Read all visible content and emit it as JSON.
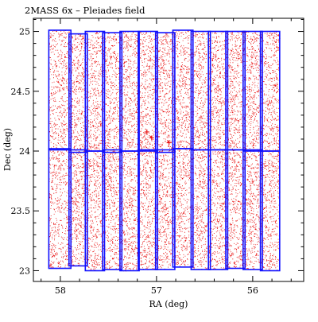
{
  "chart_data": {
    "type": "scatter",
    "title": "2MASS 6x  –  Pleiades field",
    "xlabel": "RA (deg)",
    "ylabel": "Dec (deg)",
    "xlim": [
      58.28,
      55.47
    ],
    "ylim": [
      22.91,
      25.11
    ],
    "x_ticks": [
      58,
      57,
      56
    ],
    "x_minor_step": 0.2,
    "y_ticks": [
      23,
      23.5,
      24,
      24.5,
      25
    ],
    "y_tick_labels": [
      "23",
      "23.5",
      "24",
      "24.5",
      "25"
    ],
    "y_minor_step": 0.1,
    "x_tick_labels": [
      "58",
      "57",
      "56"
    ],
    "point_color": "#e81010",
    "scan_color": "#1010ff",
    "scans": [
      {
        "ra_min": 57.89,
        "ra_max": 58.12,
        "dec_min": 24.01,
        "dec_max": 25.01
      },
      {
        "ra_min": 57.72,
        "ra_max": 57.91,
        "dec_min": 23.99,
        "dec_max": 24.98
      },
      {
        "ra_min": 57.54,
        "ra_max": 57.74,
        "dec_min": 24.0,
        "dec_max": 25.0
      },
      {
        "ra_min": 57.36,
        "ra_max": 57.56,
        "dec_min": 23.99,
        "dec_max": 24.99
      },
      {
        "ra_min": 57.18,
        "ra_max": 57.38,
        "dec_min": 24.0,
        "dec_max": 25.0
      },
      {
        "ra_min": 56.99,
        "ra_max": 57.19,
        "dec_min": 24.0,
        "dec_max": 25.0
      },
      {
        "ra_min": 56.81,
        "ra_max": 57.01,
        "dec_min": 23.99,
        "dec_max": 24.99
      },
      {
        "ra_min": 56.62,
        "ra_max": 56.83,
        "dec_min": 24.02,
        "dec_max": 25.01
      },
      {
        "ra_min": 56.44,
        "ra_max": 56.64,
        "dec_min": 24.01,
        "dec_max": 25.0
      },
      {
        "ra_min": 56.26,
        "ra_max": 56.46,
        "dec_min": 24.01,
        "dec_max": 25.0
      },
      {
        "ra_min": 56.08,
        "ra_max": 56.28,
        "dec_min": 24.01,
        "dec_max": 25.0
      },
      {
        "ra_min": 55.9,
        "ra_max": 56.1,
        "dec_min": 24.0,
        "dec_max": 25.0
      },
      {
        "ra_min": 55.72,
        "ra_max": 55.92,
        "dec_min": 24.0,
        "dec_max": 25.0
      },
      {
        "ra_min": 57.89,
        "ra_max": 58.12,
        "dec_min": 23.02,
        "dec_max": 24.02
      },
      {
        "ra_min": 57.72,
        "ra_max": 57.91,
        "dec_min": 23.04,
        "dec_max": 24.01
      },
      {
        "ra_min": 57.54,
        "ra_max": 57.74,
        "dec_min": 23.0,
        "dec_max": 24.0
      },
      {
        "ra_min": 57.36,
        "ra_max": 57.56,
        "dec_min": 23.01,
        "dec_max": 24.01
      },
      {
        "ra_min": 57.18,
        "ra_max": 57.38,
        "dec_min": 23.0,
        "dec_max": 24.0
      },
      {
        "ra_min": 56.99,
        "ra_max": 57.19,
        "dec_min": 23.01,
        "dec_max": 24.01
      },
      {
        "ra_min": 56.81,
        "ra_max": 57.01,
        "dec_min": 23.01,
        "dec_max": 24.01
      },
      {
        "ra_min": 56.62,
        "ra_max": 56.83,
        "dec_min": 23.03,
        "dec_max": 24.02
      },
      {
        "ra_min": 56.44,
        "ra_max": 56.64,
        "dec_min": 23.01,
        "dec_max": 24.01
      },
      {
        "ra_min": 56.26,
        "ra_max": 56.46,
        "dec_min": 23.01,
        "dec_max": 24.01
      },
      {
        "ra_min": 56.08,
        "ra_max": 56.28,
        "dec_min": 23.02,
        "dec_max": 24.01
      },
      {
        "ra_min": 55.9,
        "ra_max": 56.1,
        "dec_min": 23.01,
        "dec_max": 24.01
      },
      {
        "ra_min": 55.72,
        "ra_max": 55.92,
        "dec_min": 23.0,
        "dec_max": 24.0
      }
    ],
    "points": [
      [
        58.04,
        24.71
      ],
      [
        57.96,
        24.22
      ],
      [
        57.93,
        23.4
      ],
      [
        58.08,
        23.12
      ],
      [
        57.99,
        24.55
      ],
      [
        57.81,
        23.71
      ],
      [
        57.66,
        24.86
      ],
      [
        57.62,
        23.28
      ],
      [
        57.48,
        24.4
      ],
      [
        57.44,
        23.56
      ],
      [
        57.29,
        24.62
      ],
      [
        57.25,
        23.18
      ],
      [
        57.12,
        24.81
      ],
      [
        57.06,
        23.84
      ],
      [
        56.93,
        24.33
      ],
      [
        56.9,
        23.47
      ],
      [
        56.74,
        24.71
      ],
      [
        56.7,
        23.25
      ],
      [
        56.56,
        24.48
      ],
      [
        56.52,
        23.69
      ],
      [
        56.39,
        24.92
      ],
      [
        56.33,
        23.37
      ],
      [
        56.18,
        24.27
      ],
      [
        56.15,
        23.58
      ],
      [
        56.02,
        24.66
      ],
      [
        55.96,
        23.14
      ],
      [
        55.84,
        24.39
      ],
      [
        55.78,
        23.83
      ],
      [
        57.83,
        24.58
      ],
      [
        57.7,
        23.92
      ],
      [
        57.11,
        24.1
      ],
      [
        57.06,
        24.12
      ],
      [
        56.88,
        24.08
      ],
      [
        56.95,
        23.9
      ],
      [
        57.02,
        23.86
      ],
      [
        57.15,
        24.22
      ],
      [
        56.8,
        24.18
      ],
      [
        57.2,
        23.97
      ],
      [
        57.09,
        24.31
      ],
      [
        56.98,
        24.27
      ],
      [
        58.1,
        24.95
      ],
      [
        57.95,
        24.79
      ],
      [
        57.78,
        24.31
      ],
      [
        57.6,
        24.05
      ],
      [
        57.42,
        24.93
      ],
      [
        57.33,
        24.15
      ],
      [
        57.23,
        23.42
      ],
      [
        57.16,
        23.05
      ],
      [
        56.97,
        23.63
      ],
      [
        56.86,
        24.54
      ],
      [
        56.77,
        23.9
      ],
      [
        56.6,
        23.12
      ],
      [
        56.48,
        24.16
      ],
      [
        56.36,
        23.81
      ],
      [
        56.22,
        24.84
      ],
      [
        56.11,
        23.29
      ],
      [
        55.99,
        24.05
      ],
      [
        55.88,
        23.52
      ],
      [
        55.76,
        24.91
      ],
      [
        57.89,
        23.27
      ],
      [
        58.06,
        23.88
      ],
      [
        57.74,
        23.51
      ],
      [
        57.52,
        23.76
      ],
      [
        57.39,
        24.69
      ],
      [
        57.27,
        24.44
      ],
      [
        57.03,
        24.6
      ],
      [
        56.83,
        23.16
      ],
      [
        56.69,
        24.28
      ],
      [
        56.58,
        23.44
      ],
      [
        56.42,
        24.76
      ],
      [
        56.29,
        24.05
      ],
      [
        56.13,
        23.95
      ],
      [
        56.05,
        23.76
      ],
      [
        55.93,
        24.63
      ],
      [
        55.81,
        23.08
      ],
      [
        57.58,
        24.22
      ],
      [
        57.45,
        23.1
      ],
      [
        57.18,
        24.55
      ],
      [
        56.73,
        23.77
      ],
      [
        56.27,
        23.24
      ]
    ]
  }
}
